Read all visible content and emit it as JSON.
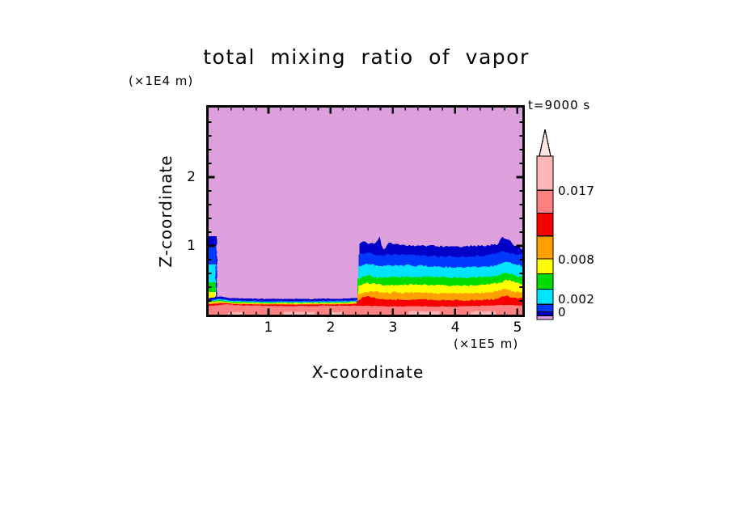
{
  "chart_data": {
    "type": "filled_contour",
    "title": "total mixing ratio of vapor",
    "time_label": "t=9000 s",
    "x_axis": {
      "label": "X-coordinate",
      "unit": "(×1E5 m)",
      "range": [
        0,
        5.12
      ],
      "major_ticks": [
        1,
        2,
        3,
        4,
        5
      ],
      "minor_tick_step": 0.2,
      "tick_labels": [
        "1",
        "2",
        "3",
        "4",
        "5"
      ]
    },
    "z_axis": {
      "label": "Z-coordinate",
      "unit": "(×1E4 m)",
      "range": [
        0,
        3.05
      ],
      "major_ticks": [
        1,
        2
      ],
      "minor_tick_step": 0.2,
      "tick_labels": [
        "1",
        "2"
      ]
    },
    "palette": {
      "plum": "#DDA0DD",
      "navy": "#0000C8",
      "blue": "#0038FF",
      "cyan": "#00E4FF",
      "green": "#00DC00",
      "yellow": "#FFFF00",
      "orange": "#FFA000",
      "red": "#F80000",
      "salmon": "#FF8080",
      "lightpink": "#FFB6B6",
      "arrow": "#FFE4E4"
    },
    "levels": [
      0,
      0.0005,
      0.001,
      0.002,
      0.004,
      0.006,
      0.008,
      0.011,
      0.014,
      0.017,
      0.0215
    ],
    "level_colors": [
      "plum",
      "navy",
      "blue",
      "cyan",
      "green",
      "yellow",
      "orange",
      "red",
      "salmon",
      "lightpink"
    ],
    "colorbar": {
      "min": 0,
      "max": 0.0215,
      "levels": [
        0,
        0.0005,
        0.001,
        0.002,
        0.004,
        0.006,
        0.008,
        0.011,
        0.014,
        0.017,
        0.0215
      ],
      "colors": [
        "plum",
        "navy",
        "blue",
        "cyan",
        "green",
        "yellow",
        "orange",
        "red",
        "salmon",
        "lightpink"
      ],
      "arrow_color": "arrow",
      "tick_labels": [
        "0.017",
        "0.008",
        "0.002",
        "0"
      ],
      "tick_values": [
        0.017,
        0.008,
        0.002,
        0
      ]
    },
    "field": {
      "background": "plum",
      "left_column": {
        "bands": [
          {
            "color": "navy",
            "z_top": 1.14,
            "x_end": 0.17
          },
          {
            "color": "blue",
            "z_top": 1.0,
            "x_end": 0.165
          },
          {
            "color": "cyan",
            "z_top": 0.73,
            "x_end": 0.155
          },
          {
            "color": "green",
            "z_top": 0.47,
            "x_end": 0.15
          },
          {
            "color": "yellow",
            "z_top": 0.33,
            "x_end": 0.145
          },
          {
            "color": "orange",
            "z_top": 0.24,
            "x_end": 0.14
          }
        ]
      },
      "bottom_strip": {
        "x_start": 0,
        "x_end": 2.5,
        "bands": [
          {
            "color": "navy",
            "top": [
              [
                0,
                0.23
              ],
              [
                0.22,
                0.265
              ],
              [
                0.4,
                0.24
              ],
              [
                0.9,
                0.23
              ],
              [
                1.6,
                0.228
              ],
              [
                2.25,
                0.235
              ],
              [
                2.5,
                0.25
              ]
            ]
          },
          {
            "color": "blue",
            "top": [
              [
                0,
                0.205
              ],
              [
                0.22,
                0.24
              ],
              [
                0.4,
                0.215
              ],
              [
                0.9,
                0.205
              ],
              [
                1.6,
                0.203
              ],
              [
                2.25,
                0.21
              ],
              [
                2.5,
                0.225
              ]
            ]
          },
          {
            "color": "cyan",
            "top": [
              [
                0,
                0.19
              ],
              [
                0.22,
                0.225
              ],
              [
                0.4,
                0.2
              ],
              [
                0.9,
                0.19
              ],
              [
                1.6,
                0.188
              ],
              [
                2.25,
                0.195
              ],
              [
                2.5,
                0.21
              ]
            ]
          },
          {
            "color": "green",
            "top": [
              [
                0,
                0.18
              ],
              [
                0.22,
                0.21
              ],
              [
                0.4,
                0.188
              ],
              [
                0.9,
                0.178
              ],
              [
                1.6,
                0.177
              ],
              [
                2.25,
                0.183
              ],
              [
                2.5,
                0.198
              ]
            ]
          },
          {
            "color": "yellow",
            "top": [
              [
                0,
                0.17
              ],
              [
                0.22,
                0.198
              ],
              [
                0.4,
                0.176
              ],
              [
                0.9,
                0.168
              ],
              [
                1.6,
                0.167
              ],
              [
                2.25,
                0.172
              ],
              [
                2.5,
                0.187
              ]
            ]
          },
          {
            "color": "orange",
            "top": [
              [
                0,
                0.16
              ],
              [
                0.22,
                0.185
              ],
              [
                0.4,
                0.165
              ],
              [
                0.9,
                0.158
              ],
              [
                1.6,
                0.156
              ],
              [
                2.25,
                0.16
              ],
              [
                2.5,
                0.175
              ]
            ]
          },
          {
            "color": "red",
            "top": [
              [
                0,
                0.148
              ],
              [
                0.3,
                0.165
              ],
              [
                0.5,
                0.152
              ],
              [
                1.0,
                0.147
              ],
              [
                1.7,
                0.146
              ],
              [
                2.3,
                0.15
              ],
              [
                2.5,
                0.165
              ]
            ]
          }
        ]
      },
      "right_block": {
        "x_end": 5.12,
        "bands": [
          {
            "color": "navy",
            "x_start": 2.46,
            "top": [
              [
                2.46,
                1.03
              ],
              [
                2.52,
                1.07
              ],
              [
                2.64,
                1.03
              ],
              [
                2.74,
                1.05
              ],
              [
                2.79,
                1.13
              ],
              [
                2.83,
                0.96
              ],
              [
                2.88,
                0.97
              ],
              [
                2.94,
                1.04
              ],
              [
                3.2,
                1.01
              ],
              [
                3.6,
                1.0
              ],
              [
                4.0,
                0.99
              ],
              [
                4.4,
                1.0
              ],
              [
                4.68,
                1.02
              ],
              [
                4.76,
                1.13
              ],
              [
                4.86,
                1.1
              ],
              [
                4.94,
                1.02
              ],
              [
                5.02,
                1.0
              ],
              [
                5.06,
                0.95
              ],
              [
                5.12,
                0.97
              ]
            ]
          },
          {
            "color": "blue",
            "x_start": 2.45,
            "top": [
              [
                2.45,
                0.88
              ],
              [
                2.6,
                0.9
              ],
              [
                2.8,
                0.86
              ],
              [
                3.0,
                0.88
              ],
              [
                3.3,
                0.87
              ],
              [
                3.7,
                0.85
              ],
              [
                4.1,
                0.84
              ],
              [
                4.5,
                0.86
              ],
              [
                4.78,
                0.92
              ],
              [
                4.95,
                0.88
              ],
              [
                5.12,
                0.88
              ]
            ]
          },
          {
            "color": "cyan",
            "x_start": 2.44,
            "top": [
              [
                2.44,
                0.7
              ],
              [
                2.6,
                0.74
              ],
              [
                2.8,
                0.71
              ],
              [
                3.1,
                0.72
              ],
              [
                3.5,
                0.71
              ],
              [
                3.9,
                0.69
              ],
              [
                4.3,
                0.69
              ],
              [
                4.65,
                0.71
              ],
              [
                4.8,
                0.77
              ],
              [
                5.0,
                0.72
              ],
              [
                5.12,
                0.71
              ]
            ]
          },
          {
            "color": "green",
            "x_start": 2.43,
            "top": [
              [
                2.43,
                0.52
              ],
              [
                2.56,
                0.57
              ],
              [
                2.75,
                0.54
              ],
              [
                3.1,
                0.55
              ],
              [
                3.5,
                0.55
              ],
              [
                3.9,
                0.54
              ],
              [
                4.3,
                0.54
              ],
              [
                4.68,
                0.56
              ],
              [
                4.82,
                0.61
              ],
              [
                5.0,
                0.56
              ],
              [
                5.12,
                0.55
              ]
            ]
          },
          {
            "color": "yellow",
            "x_start": 2.44,
            "top": [
              [
                2.44,
                0.42
              ],
              [
                2.58,
                0.46
              ],
              [
                2.85,
                0.43
              ],
              [
                3.25,
                0.44
              ],
              [
                3.65,
                0.43
              ],
              [
                4.05,
                0.42
              ],
              [
                4.45,
                0.43
              ],
              [
                4.72,
                0.46
              ],
              [
                4.84,
                0.51
              ],
              [
                5.05,
                0.44
              ],
              [
                5.12,
                0.44
              ]
            ]
          },
          {
            "color": "orange",
            "x_start": 2.43,
            "top": [
              [
                2.43,
                0.3
              ],
              [
                2.62,
                0.34
              ],
              [
                2.95,
                0.32
              ],
              [
                3.35,
                0.32
              ],
              [
                3.75,
                0.31
              ],
              [
                4.15,
                0.31
              ],
              [
                4.55,
                0.32
              ],
              [
                4.78,
                0.37
              ],
              [
                4.95,
                0.33
              ],
              [
                5.12,
                0.33
              ]
            ]
          },
          {
            "color": "red",
            "x_start": 2.42,
            "top": [
              [
                2.42,
                0.2
              ],
              [
                2.55,
                0.27
              ],
              [
                2.72,
                0.24
              ],
              [
                3.05,
                0.22
              ],
              [
                3.45,
                0.22
              ],
              [
                3.85,
                0.21
              ],
              [
                4.25,
                0.21
              ],
              [
                4.62,
                0.22
              ],
              [
                4.82,
                0.27
              ],
              [
                5.02,
                0.23
              ],
              [
                5.12,
                0.24
              ]
            ]
          }
        ]
      },
      "salmon_layer": {
        "color": "salmon",
        "x_start": 0,
        "x_end": 5.12,
        "top": [
          [
            0,
            0.12
          ],
          [
            0.3,
            0.15
          ],
          [
            0.7,
            0.13
          ],
          [
            1.5,
            0.125
          ],
          [
            2.3,
            0.13
          ],
          [
            2.6,
            0.13
          ],
          [
            3.0,
            0.12
          ],
          [
            4.0,
            0.12
          ],
          [
            4.8,
            0.14
          ],
          [
            5.12,
            0.13
          ]
        ]
      },
      "light_patches": {
        "color": "lightpink",
        "patches": [
          [
            1.25,
            1.75,
            0.04
          ],
          [
            2.0,
            2.2,
            0.035
          ],
          [
            3.25,
            3.75,
            0.05
          ],
          [
            4.25,
            4.65,
            0.05
          ],
          [
            0.35,
            0.6,
            0.035
          ]
        ]
      }
    }
  }
}
